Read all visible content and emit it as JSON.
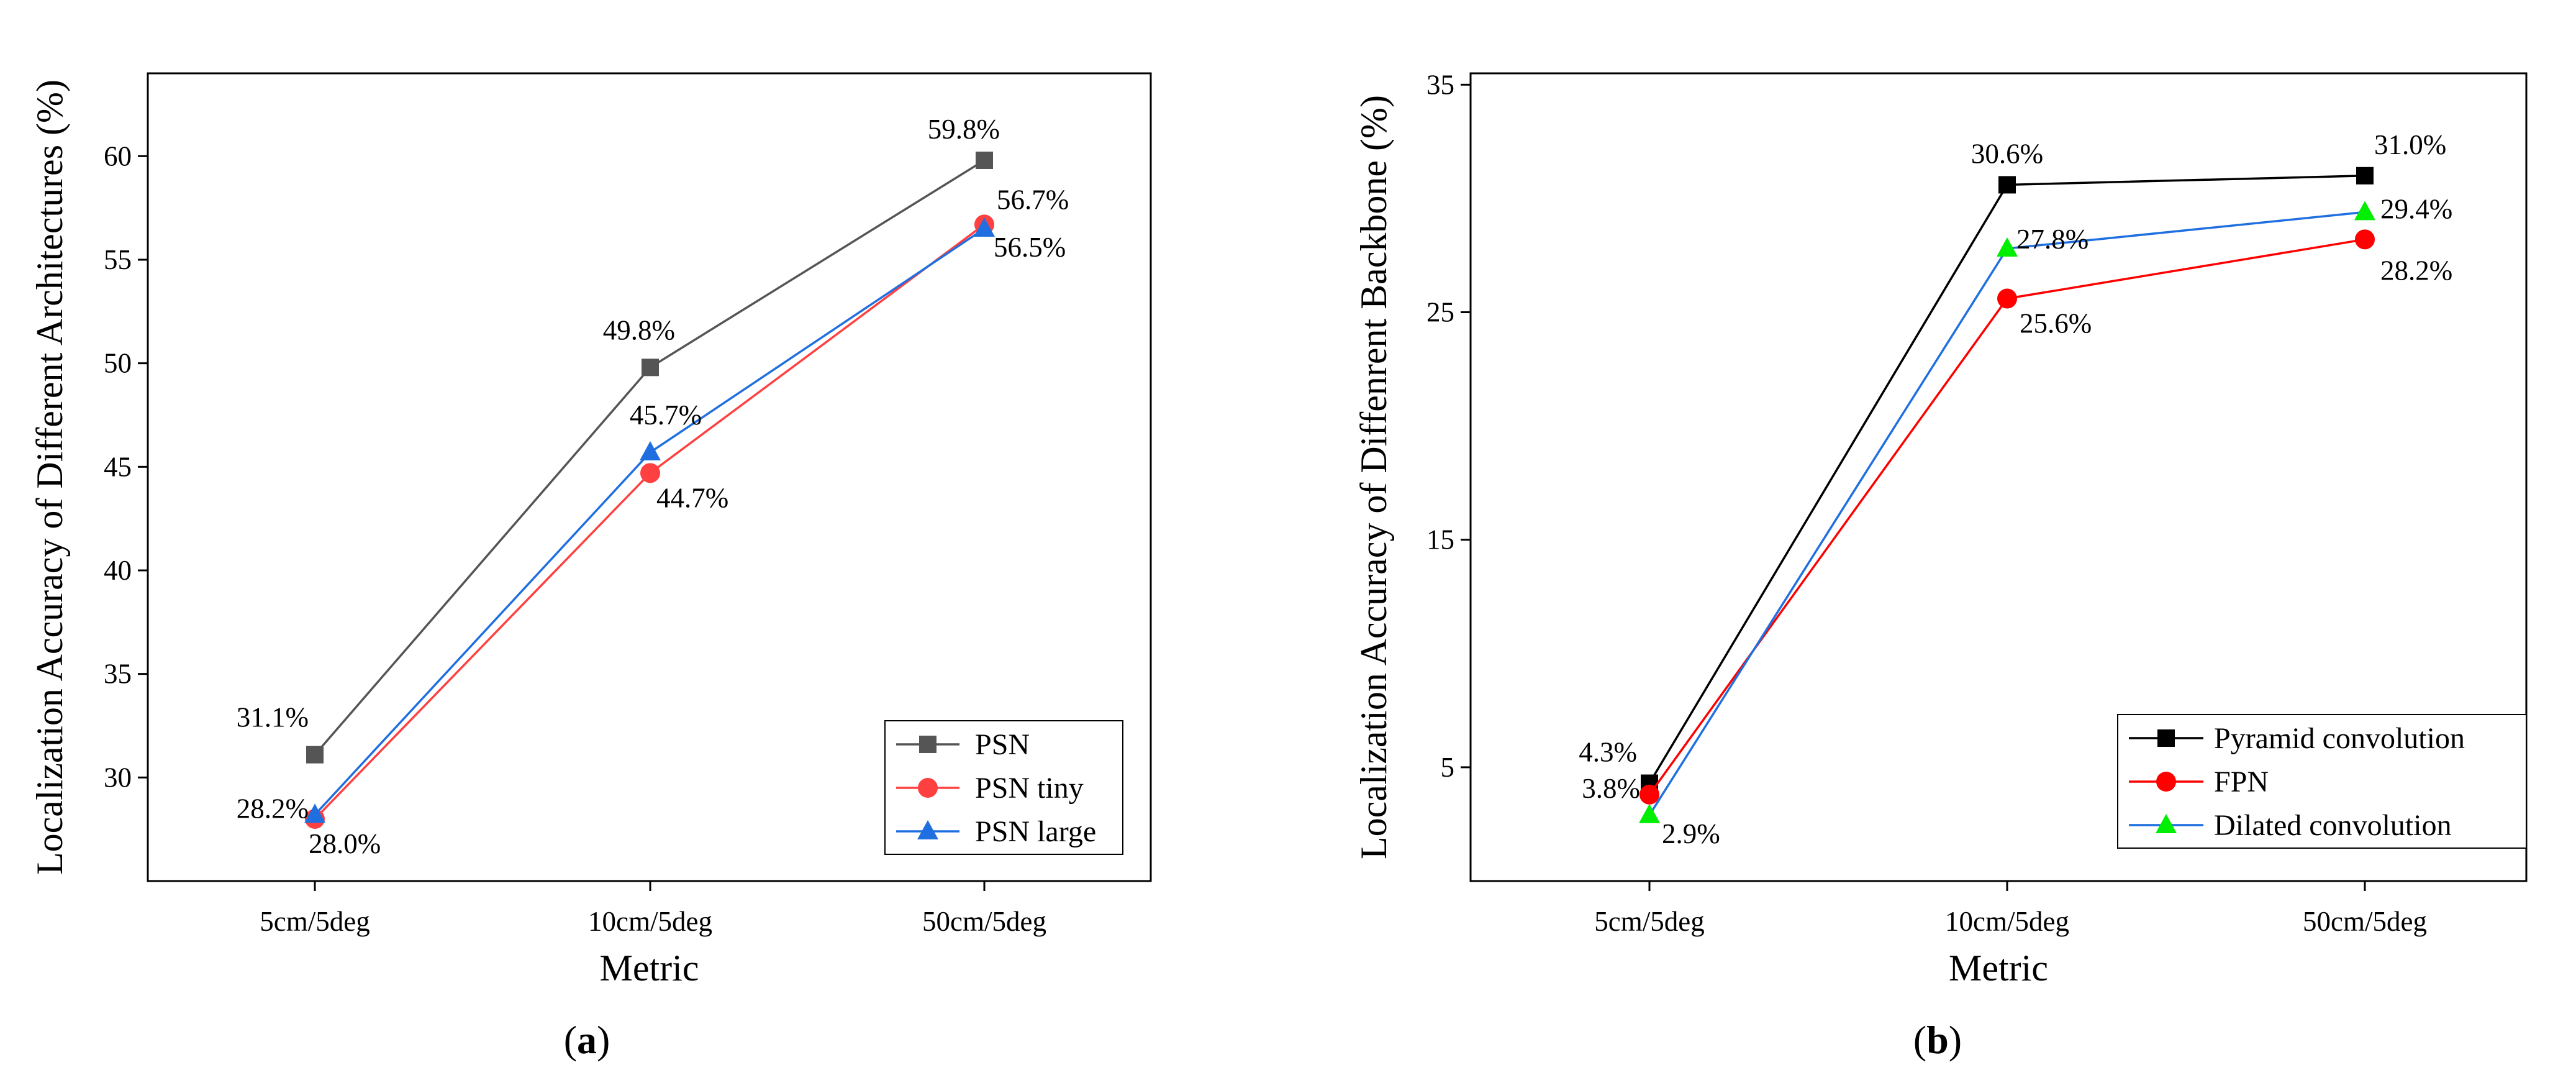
{
  "chart_data": [
    {
      "id": "a",
      "type": "line",
      "caption": "(a)",
      "caption_letter": "a",
      "xlabel": "Metric",
      "ylabel": "Localization Accuracy of Different Architectures (%)",
      "categories": [
        "5cm/5deg",
        "10cm/5deg",
        "50cm/5deg"
      ],
      "ylim": [
        25,
        64
      ],
      "yticks": [
        30,
        35,
        40,
        45,
        50,
        55,
        60
      ],
      "legend_position": "bottom-right",
      "series": [
        {
          "name": "PSN",
          "values": [
            31.1,
            49.8,
            59.8
          ],
          "labels": [
            "31.1%",
            "49.8%",
            "59.8%"
          ],
          "color": "#555555",
          "marker": "square"
        },
        {
          "name": "PSN tiny",
          "values": [
            28.0,
            44.7,
            56.7
          ],
          "labels": [
            "28.0%",
            "44.7%",
            "56.7%"
          ],
          "color": "#ff4040",
          "marker": "circle"
        },
        {
          "name": "PSN large",
          "values": [
            28.2,
            45.7,
            56.5
          ],
          "labels": [
            "28.2%",
            "45.7%",
            "56.5%"
          ],
          "color": "#1f6fe0",
          "marker": "triangle"
        }
      ]
    },
    {
      "id": "b",
      "type": "line",
      "caption": "(b)",
      "caption_letter": "b",
      "xlabel": "Metric",
      "ylabel": "Localization Accuracy of Diffenrent Backbone (%)",
      "categories": [
        "5cm/5deg",
        "10cm/5deg",
        "50cm/5deg"
      ],
      "ylim": [
        0,
        35.5
      ],
      "yticks": [
        5,
        15,
        25,
        35
      ],
      "legend_position": "bottom-right",
      "series": [
        {
          "name": "Pyramid convolution",
          "values": [
            4.3,
            30.6,
            31.0
          ],
          "labels": [
            "4.3%",
            "30.6%",
            "31.0%"
          ],
          "color": "#000000",
          "marker": "square"
        },
        {
          "name": "FPN",
          "values": [
            3.8,
            25.6,
            28.2
          ],
          "labels": [
            "3.8%",
            "25.6%",
            "28.2%"
          ],
          "color": "#ff0000",
          "marker": "circle"
        },
        {
          "name": "Dilated convolution",
          "values": [
            2.9,
            27.8,
            29.4
          ],
          "labels": [
            "2.9%",
            "27.8%",
            "29.4%"
          ],
          "color": "#1f6fe0",
          "marker": "triangle",
          "marker_color": "#00ee00"
        }
      ]
    }
  ]
}
